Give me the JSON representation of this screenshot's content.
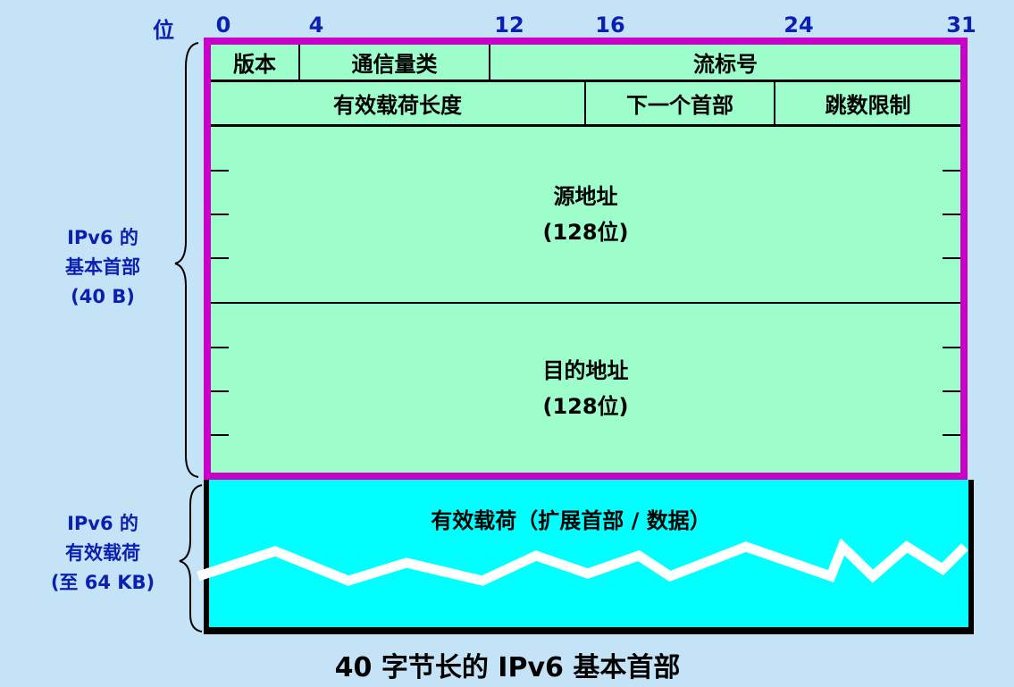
{
  "bit_axis": {
    "label": "位",
    "ticks": [
      "0",
      "4",
      "12",
      "16",
      "24",
      "31"
    ]
  },
  "header": {
    "row1": {
      "version": "版本",
      "traffic_class": "通信量类",
      "flow_label": "流标号"
    },
    "row2": {
      "payload_length": "有效载荷长度",
      "next_header": "下一个首部",
      "hop_limit": "跳数限制"
    },
    "source": {
      "name": "源地址",
      "size": "(128位)"
    },
    "destination": {
      "name": "目的地址",
      "size": "(128位)"
    }
  },
  "payload": {
    "label": "有效载荷（扩展首部 / 数据）"
  },
  "side_labels": {
    "base_header": [
      "IPv6 的",
      "基本首部",
      "(40 B)"
    ],
    "payload": [
      "IPv6 的",
      "有效载荷",
      "(至 64 KB)"
    ]
  },
  "caption": "40 字节长的 IPv6 基本首部",
  "colors": {
    "header_border": "#c800c8",
    "header_fill": "#9dfdcb",
    "payload_fill": "#00ffff",
    "label_blue": "#0b1fb0",
    "background": "#c5e3f6"
  }
}
